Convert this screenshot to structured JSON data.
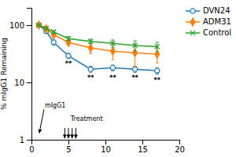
{
  "chart_data": {
    "type": "line",
    "y_label": "% mIgG1 Remaining",
    "x": [
      1,
      2,
      3,
      5,
      8,
      11,
      14,
      17
    ],
    "series": [
      {
        "name": "DVN24",
        "marker": "circle-open",
        "values": [
          100,
          78,
          50,
          29,
          17,
          18,
          17,
          16
        ],
        "errors": [
          2,
          5,
          5,
          3,
          2,
          2,
          2,
          2
        ]
      },
      {
        "name": "ADM31",
        "marker": "diamond",
        "values": [
          100,
          86,
          68,
          50,
          40,
          35,
          33,
          31
        ],
        "errors": [
          2,
          4,
          7,
          6,
          8,
          10,
          14,
          9
        ]
      },
      {
        "name": "Control",
        "marker": "x",
        "values": [
          100,
          88,
          76,
          58,
          52,
          48,
          44,
          42
        ],
        "errors": [
          2,
          3,
          4,
          5,
          5,
          7,
          9,
          8
        ]
      }
    ],
    "log": "y",
    "xlim": [
      0,
      20
    ],
    "ylim": [
      1,
      200
    ],
    "xticks": [
      0,
      5,
      10,
      15,
      20
    ],
    "yticks": [
      1,
      10,
      100
    ],
    "grid": false,
    "legend": "right",
    "annotations": [
      {
        "text": "Treatment",
        "x": 5.3,
        "y": 2.0,
        "arrows": [
          {
            "x": 4.5,
            "y_from": 1.6,
            "y_to": 1.05
          },
          {
            "x": 5.0,
            "y_from": 1.6,
            "y_to": 1.05
          },
          {
            "x": 5.5,
            "y_from": 1.6,
            "y_to": 1.05
          },
          {
            "x": 6.0,
            "y_from": 1.6,
            "y_to": 1.05
          }
        ]
      },
      {
        "text": "mIgG1",
        "x": 1.8,
        "y": 3.5,
        "arrow_x": 1.05,
        "arrow_y": 1.3
      },
      {
        "text": "**",
        "x": 5,
        "y": 23
      },
      {
        "text": "**",
        "x": 8,
        "y": 13
      },
      {
        "text": "**",
        "x": 11,
        "y": 13
      },
      {
        "text": "**",
        "x": 14,
        "y": 13
      },
      {
        "text": "**",
        "x": 17,
        "y": 12
      }
    ]
  }
}
